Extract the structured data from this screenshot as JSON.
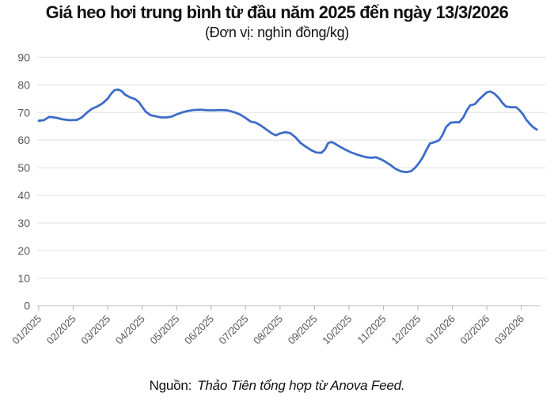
{
  "title": "Giá heo hơi trung bình từ đầu năm 2025 đến ngày 13/3/2026",
  "subtitle": "(Đơn vị: nghìn đồng/kg)",
  "source": {
    "prefix": "Nguồn:",
    "text": "Thảo Tiên tổng hợp từ Anova Feed."
  },
  "chart_data": {
    "type": "line",
    "title": "Giá heo hơi trung bình từ đầu năm 2025 đến ngày 13/3/2026",
    "subtitle": "(Đơn vị: nghìn đồng/kg)",
    "ylabel": "nghìn đồng/kg",
    "xlabel": "",
    "ylim": [
      0,
      90
    ],
    "y_ticks": [
      0,
      10,
      20,
      30,
      40,
      50,
      60,
      70,
      80,
      90
    ],
    "x_tick_labels": [
      "01/2025",
      "02/2025",
      "03/2025",
      "04/2025",
      "05/2025",
      "06/2025",
      "07/2025",
      "08/2025",
      "09/2025",
      "10/2025",
      "11/2025",
      "12/2025",
      "01/2026",
      "02/2026",
      "03/2026"
    ],
    "grid": "horizontal-only",
    "legend": "none",
    "line_color": "#3d6cc9",
    "grid_color": "#e7e7e7",
    "axis_color": "#d2d2d2",
    "tick_color": "#bdbdbd",
    "label_color": "#58585a",
    "x_unit": "months since 01/2025 (fractional; 14.45 = 13/3/2026)",
    "points": [
      [
        0.0,
        67.0
      ],
      [
        0.15,
        67.2
      ],
      [
        0.3,
        68.4
      ],
      [
        0.5,
        68.1
      ],
      [
        0.7,
        67.5
      ],
      [
        0.9,
        67.2
      ],
      [
        1.1,
        67.3
      ],
      [
        1.25,
        68.2
      ],
      [
        1.4,
        70.0
      ],
      [
        1.55,
        71.4
      ],
      [
        1.7,
        72.2
      ],
      [
        1.85,
        73.3
      ],
      [
        2.0,
        75.0
      ],
      [
        2.1,
        76.8
      ],
      [
        2.2,
        78.1
      ],
      [
        2.3,
        78.3
      ],
      [
        2.4,
        77.8
      ],
      [
        2.5,
        76.5
      ],
      [
        2.65,
        75.5
      ],
      [
        2.8,
        74.8
      ],
      [
        2.9,
        73.8
      ],
      [
        3.0,
        72.1
      ],
      [
        3.1,
        70.3
      ],
      [
        3.25,
        69.0
      ],
      [
        3.4,
        68.6
      ],
      [
        3.55,
        68.2
      ],
      [
        3.7,
        68.2
      ],
      [
        3.85,
        68.5
      ],
      [
        4.0,
        69.3
      ],
      [
        4.15,
        70.0
      ],
      [
        4.3,
        70.5
      ],
      [
        4.5,
        70.9
      ],
      [
        4.7,
        71.0
      ],
      [
        4.9,
        70.8
      ],
      [
        5.1,
        70.8
      ],
      [
        5.3,
        70.9
      ],
      [
        5.5,
        70.7
      ],
      [
        5.7,
        70.0
      ],
      [
        5.85,
        69.2
      ],
      [
        6.0,
        68.0
      ],
      [
        6.15,
        66.7
      ],
      [
        6.3,
        66.3
      ],
      [
        6.45,
        65.2
      ],
      [
        6.6,
        63.9
      ],
      [
        6.75,
        62.5
      ],
      [
        6.87,
        61.7
      ],
      [
        7.0,
        62.4
      ],
      [
        7.15,
        62.9
      ],
      [
        7.3,
        62.5
      ],
      [
        7.45,
        61.0
      ],
      [
        7.6,
        58.9
      ],
      [
        7.75,
        57.6
      ],
      [
        7.9,
        56.4
      ],
      [
        8.05,
        55.5
      ],
      [
        8.2,
        55.4
      ],
      [
        8.3,
        56.6
      ],
      [
        8.4,
        59.0
      ],
      [
        8.5,
        59.3
      ],
      [
        8.62,
        58.5
      ],
      [
        8.75,
        57.5
      ],
      [
        8.9,
        56.5
      ],
      [
        9.05,
        55.6
      ],
      [
        9.2,
        54.9
      ],
      [
        9.35,
        54.3
      ],
      [
        9.5,
        53.8
      ],
      [
        9.65,
        53.6
      ],
      [
        9.78,
        53.8
      ],
      [
        9.9,
        53.2
      ],
      [
        10.05,
        52.2
      ],
      [
        10.2,
        51.0
      ],
      [
        10.35,
        49.6
      ],
      [
        10.5,
        48.7
      ],
      [
        10.65,
        48.4
      ],
      [
        10.8,
        48.7
      ],
      [
        10.92,
        50.0
      ],
      [
        11.05,
        52.0
      ],
      [
        11.15,
        54.0
      ],
      [
        11.25,
        56.5
      ],
      [
        11.35,
        58.8
      ],
      [
        11.5,
        59.3
      ],
      [
        11.62,
        60.0
      ],
      [
        11.72,
        62.0
      ],
      [
        11.82,
        64.8
      ],
      [
        11.95,
        66.3
      ],
      [
        12.1,
        66.5
      ],
      [
        12.2,
        66.4
      ],
      [
        12.32,
        68.3
      ],
      [
        12.42,
        70.8
      ],
      [
        12.52,
        72.6
      ],
      [
        12.65,
        73.0
      ],
      [
        12.78,
        74.8
      ],
      [
        12.9,
        76.2
      ],
      [
        13.0,
        77.3
      ],
      [
        13.1,
        77.6
      ],
      [
        13.22,
        76.8
      ],
      [
        13.35,
        75.2
      ],
      [
        13.45,
        73.5
      ],
      [
        13.55,
        72.2
      ],
      [
        13.7,
        71.9
      ],
      [
        13.85,
        71.9
      ],
      [
        13.95,
        70.8
      ],
      [
        14.05,
        69.3
      ],
      [
        14.15,
        67.3
      ],
      [
        14.25,
        65.8
      ],
      [
        14.35,
        64.6
      ],
      [
        14.45,
        63.8
      ]
    ]
  }
}
